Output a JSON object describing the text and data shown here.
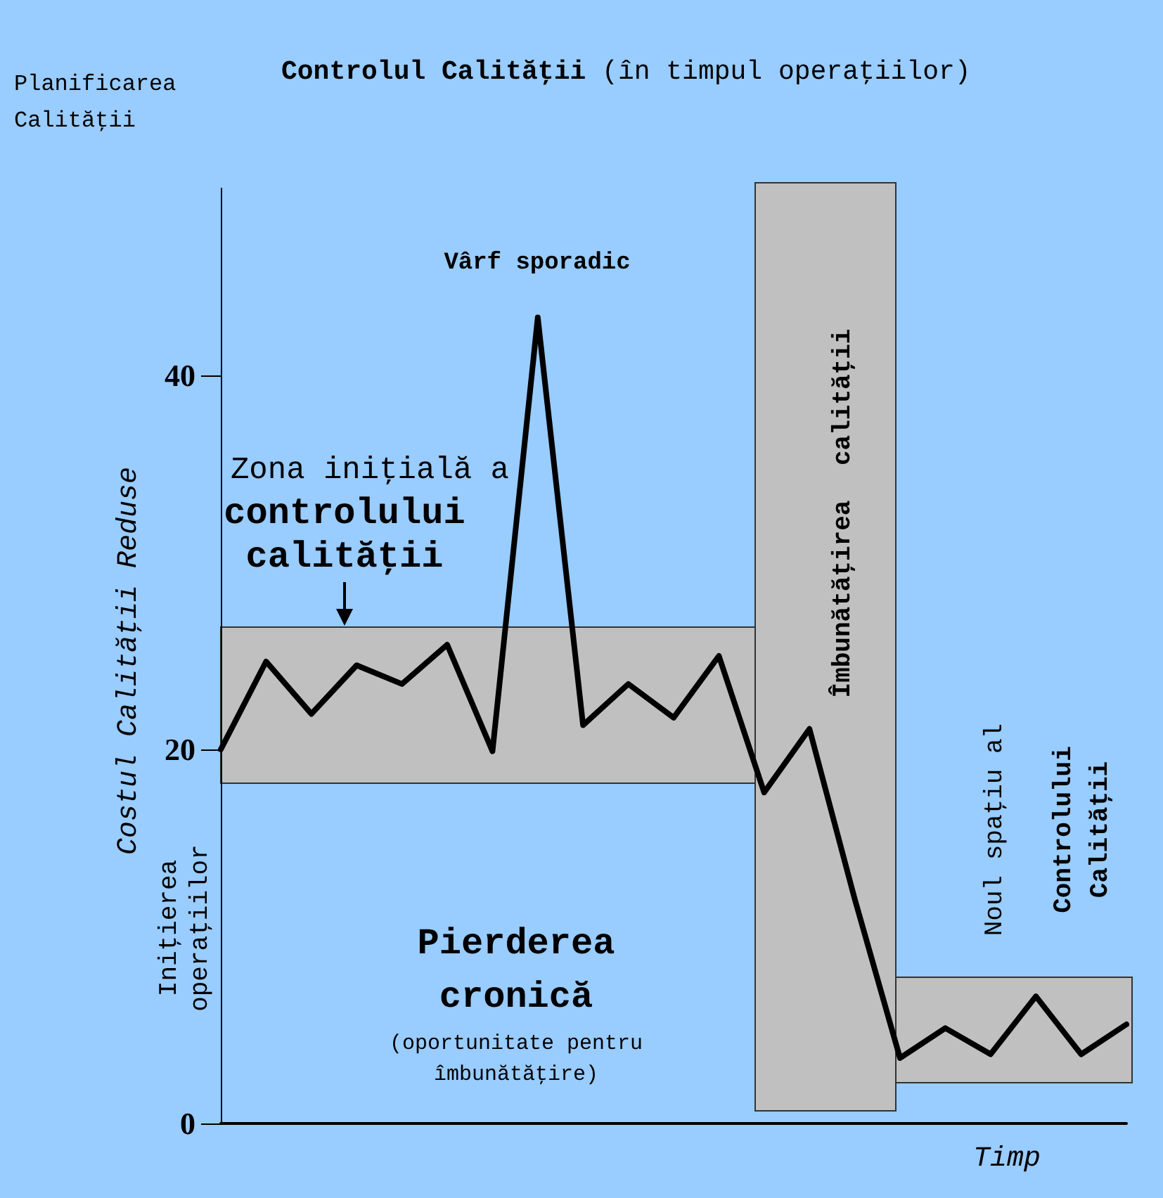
{
  "chart_data": {
    "type": "line",
    "title": "Controlul Calităţii",
    "subtitle": "(în timpul operaţiilor)",
    "xlabel": "Timp",
    "ylabel": "Costul Calităţii Reduse",
    "categories": [
      null,
      null,
      null,
      null,
      null,
      null,
      null,
      null,
      null,
      null,
      null,
      null,
      null,
      null,
      null,
      null,
      null,
      null,
      null,
      null,
      null
    ],
    "ylim": [
      0,
      50
    ],
    "yticks": [
      0,
      20,
      40
    ],
    "tick_labels": "y",
    "grid": false,
    "marker": "none",
    "line_style": "solid",
    "series": [
      {
        "color": "#000000",
        "values": [
          20,
          24.7,
          21.9,
          24.5,
          23.5,
          25.6,
          19.9,
          43.1,
          21.3,
          23.5,
          21.7,
          25.0,
          17.7,
          21.1,
          12.0,
          3.5,
          5.1,
          3.7,
          6.8,
          3.7,
          5.3
        ]
      }
    ],
    "annotations": [
      "Planificarea Calităţii",
      "Vârf sporadic",
      "Zona iniţială a",
      "controlului calităţii",
      "Iniţierea operaţiilor",
      "Pierderea cronică",
      "(oportunitate pentru îmbunătăţire)",
      "Îmbunătăţirea calităţii",
      "Noul spaţiu al",
      "Controlului Calităţii"
    ]
  }
}
